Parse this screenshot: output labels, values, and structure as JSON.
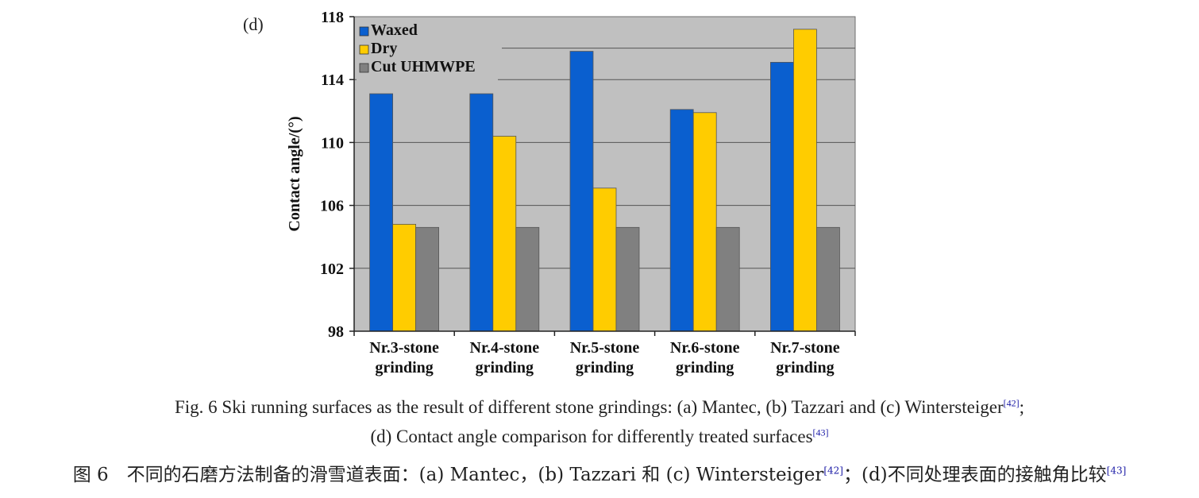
{
  "panel_label": "(d)",
  "chart_data": {
    "type": "bar",
    "categories": [
      [
        "Nr.3-stone",
        "grinding"
      ],
      [
        "Nr.4-stone",
        "grinding"
      ],
      [
        "Nr.5-stone",
        "grinding"
      ],
      [
        "Nr.6-stone",
        "grinding"
      ],
      [
        "Nr.7-stone",
        "grinding"
      ]
    ],
    "series": [
      {
        "name": "Waxed",
        "color": "#0a5fcf",
        "values": [
          113.1,
          113.1,
          115.8,
          112.1,
          115.1
        ]
      },
      {
        "name": "Dry",
        "color": "#ffcc00",
        "values": [
          104.8,
          110.4,
          107.1,
          111.9,
          117.2
        ]
      },
      {
        "name": "Cut UHMWPE",
        "color": "#808080",
        "values": [
          104.6,
          104.6,
          104.6,
          104.6,
          104.6
        ]
      }
    ],
    "ylabel": "Contact angle/(°)",
    "ylim": [
      98,
      118
    ],
    "yticks": [
      "98",
      "102",
      "106",
      "110",
      "114",
      "118"
    ],
    "grid": true,
    "legend_position": "top-left",
    "plot_background": "#c0c0c0"
  },
  "caption": {
    "en_line1": "Fig. 6  Ski running surfaces as the result of different stone grindings: (a) Mantec, (b) Tazzari and (c) Wintersteiger",
    "en_line1_ref": "[42]",
    "en_line1_end": ";",
    "en_line2": "(d) Contact angle comparison for differently treated surfaces",
    "en_line2_ref": "[43]",
    "zh_part1": "图 6　不同的石磨方法制备的滑雪道表面：(a) Mantec，(b) Tazzari 和 (c) Wintersteiger",
    "zh_ref1": "[42]",
    "zh_part2": "；(d)不同处理表面的接触角比较",
    "zh_ref2": "[43]"
  }
}
